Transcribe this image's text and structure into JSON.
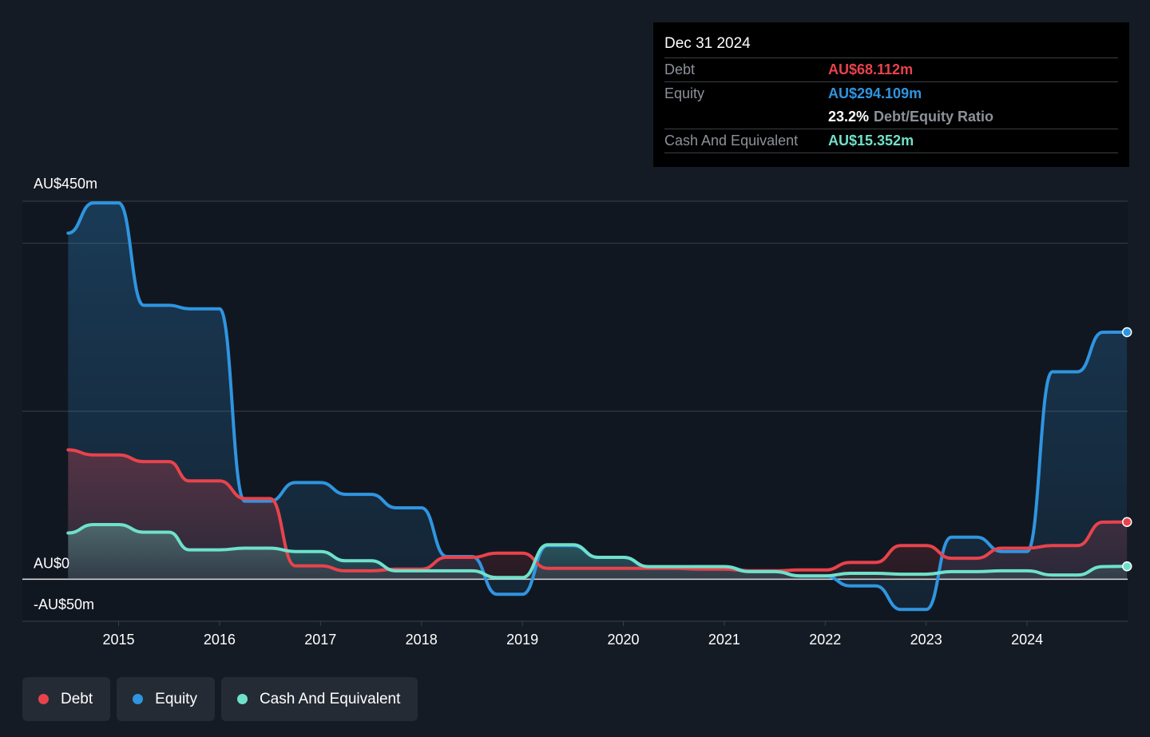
{
  "chart_data": {
    "type": "area",
    "currency_unit": "AU$m",
    "ylim": [
      -50,
      450
    ],
    "y_labels": [
      {
        "value": 450,
        "label": "AU$450m"
      },
      {
        "value": 0,
        "label": "AU$0"
      },
      {
        "value": -50,
        "label": "-AU$50m"
      }
    ],
    "x_ticks": [
      "2015",
      "2016",
      "2017",
      "2018",
      "2019",
      "2020",
      "2021",
      "2022",
      "2023",
      "2024"
    ],
    "grid": true,
    "legend_position": "bottom-left",
    "series": [
      {
        "name": "Debt",
        "color": "#e8434c",
        "x": [
          2014.5,
          2014.75,
          2015.0,
          2015.25,
          2015.5,
          2015.7,
          2016.0,
          2016.25,
          2016.5,
          2016.75,
          2017.0,
          2017.25,
          2017.5,
          2017.75,
          2018.0,
          2018.25,
          2018.5,
          2018.75,
          2019.0,
          2019.25,
          2019.5,
          2019.75,
          2020.0,
          2020.25,
          2020.5,
          2020.75,
          2021.0,
          2021.25,
          2021.5,
          2021.75,
          2022.0,
          2022.25,
          2022.5,
          2022.75,
          2023.0,
          2023.25,
          2023.5,
          2023.75,
          2024.0,
          2024.25,
          2024.5,
          2024.75,
          2024.99
        ],
        "y": [
          154,
          148,
          148,
          140,
          140,
          117,
          117,
          96,
          96,
          16,
          16,
          10,
          10,
          12,
          12,
          26,
          26,
          31,
          31,
          13,
          13,
          13,
          13,
          13,
          13,
          12,
          12,
          10,
          10,
          11,
          11,
          20,
          20,
          40,
          40,
          25,
          25,
          37,
          37,
          40,
          40,
          68,
          68.112
        ]
      },
      {
        "name": "Equity",
        "color": "#2f95e0",
        "x": [
          2014.5,
          2014.75,
          2015.0,
          2015.25,
          2015.5,
          2015.7,
          2016.0,
          2016.25,
          2016.5,
          2016.75,
          2017.0,
          2017.25,
          2017.5,
          2017.75,
          2018.0,
          2018.25,
          2018.5,
          2018.75,
          2019.0,
          2019.25,
          2019.5,
          2019.75,
          2020.0,
          2020.25,
          2020.5,
          2020.75,
          2021.0,
          2021.25,
          2021.5,
          2021.75,
          2022.0,
          2022.25,
          2022.5,
          2022.75,
          2023.0,
          2023.25,
          2023.5,
          2023.75,
          2024.0,
          2024.25,
          2024.5,
          2024.75,
          2024.99
        ],
        "y": [
          412,
          448,
          448,
          326,
          326,
          322,
          322,
          93,
          93,
          115,
          115,
          101,
          101,
          85,
          85,
          27,
          27,
          -18,
          -18,
          40,
          40,
          26,
          26,
          14,
          14,
          15,
          15,
          10,
          10,
          4,
          4,
          -8,
          -8,
          -36,
          -36,
          50,
          50,
          33,
          33,
          247,
          247,
          294,
          294.109
        ]
      },
      {
        "name": "Cash And Equivalent",
        "color": "#6fe1cb",
        "x": [
          2014.5,
          2014.75,
          2015.0,
          2015.25,
          2015.5,
          2015.7,
          2016.0,
          2016.25,
          2016.5,
          2016.75,
          2017.0,
          2017.25,
          2017.5,
          2017.75,
          2018.0,
          2018.25,
          2018.5,
          2018.75,
          2019.0,
          2019.25,
          2019.5,
          2019.75,
          2020.0,
          2020.25,
          2020.5,
          2020.75,
          2021.0,
          2021.25,
          2021.5,
          2021.75,
          2022.0,
          2022.25,
          2022.5,
          2022.75,
          2023.0,
          2023.25,
          2023.5,
          2023.75,
          2024.0,
          2024.25,
          2024.5,
          2024.75,
          2024.99
        ],
        "y": [
          55,
          65,
          65,
          56,
          56,
          35,
          35,
          37,
          37,
          33,
          33,
          22,
          22,
          10,
          10,
          10,
          10,
          2,
          2,
          41,
          41,
          26,
          26,
          15,
          15,
          15,
          15,
          9,
          9,
          4,
          4,
          7,
          7,
          6,
          6,
          9,
          9,
          10,
          10,
          5,
          5,
          15,
          15.352
        ]
      }
    ]
  },
  "tooltip": {
    "date": "Dec 31 2024",
    "debt_label": "Debt",
    "debt_value": "AU$68.112m",
    "equity_label": "Equity",
    "equity_value": "AU$294.109m",
    "ratio_value": "23.2%",
    "ratio_text": "Debt/Equity Ratio",
    "cash_label": "Cash And Equivalent",
    "cash_value": "AU$15.352m"
  },
  "legend": {
    "debt": {
      "label": "Debt",
      "color": "#e8434c"
    },
    "equity": {
      "label": "Equity",
      "color": "#2f95e0"
    },
    "cash": {
      "label": "Cash And Equivalent",
      "color": "#6fe1cb"
    }
  }
}
